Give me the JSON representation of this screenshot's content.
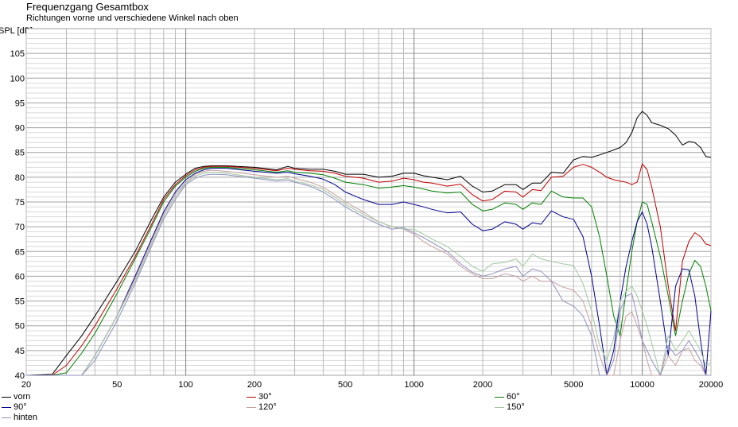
{
  "chart_data": {
    "type": "line",
    "title": "Frequenzgang Gesamtbox",
    "subtitle": "Richtungen vorne und verschiedene Winkel nach oben",
    "ylabel": "SPL [dB]",
    "xscale": "log",
    "xlim": [
      20,
      20000
    ],
    "ylim": [
      40,
      110
    ],
    "grid": true,
    "x_ticks": [
      20,
      50,
      100,
      200,
      500,
      1000,
      2000,
      5000,
      10000,
      20000
    ],
    "x_tick_labels": [
      "20",
      "50",
      "100",
      "200",
      "500",
      "1000",
      "2000",
      "5000",
      "10000",
      "20000"
    ],
    "y_ticks": [
      40,
      45,
      50,
      55,
      60,
      65,
      70,
      75,
      80,
      85,
      90,
      95,
      100,
      105
    ],
    "y_tick_labels": [
      "40",
      "45",
      "50",
      "55",
      "60",
      "65",
      "70",
      "75",
      "80",
      "85",
      "90",
      "95",
      "100",
      "105"
    ],
    "x": [
      20,
      26,
      30,
      35,
      40,
      50,
      60,
      70,
      80,
      90,
      100,
      110,
      120,
      130,
      150,
      200,
      250,
      280,
      300,
      350,
      400,
      450,
      500,
      600,
      700,
      800,
      900,
      1000,
      1100,
      1200,
      1400,
      1600,
      1800,
      2000,
      2200,
      2500,
      2800,
      3000,
      3300,
      3600,
      4000,
      4500,
      5000,
      5500,
      6000,
      6500,
      7000,
      7500,
      8000,
      8500,
      9000,
      9500,
      10000,
      10500,
      11000,
      12000,
      13000,
      14000,
      15000,
      16000,
      17000,
      18000,
      19000,
      20000
    ],
    "series": [
      {
        "name": "vorn",
        "color": "#000000",
        "values": [
          40,
          40.2,
          44,
          48,
          52,
          59,
          65,
          71,
          76,
          79,
          80.6,
          81.8,
          82.2,
          82.3,
          82.3,
          82.0,
          81.5,
          82.2,
          81.8,
          81.6,
          81.6,
          81.2,
          80.6,
          80.6,
          80.0,
          80.2,
          80.8,
          80.8,
          80.3,
          80.0,
          79.5,
          80.2,
          78.2,
          77.0,
          77.2,
          78.5,
          78.5,
          77.5,
          78.8,
          78.8,
          81.0,
          80.8,
          83.5,
          84.2,
          84.0,
          84.5,
          85.0,
          85.5,
          86.0,
          87.0,
          89.0,
          92.0,
          93.3,
          92.5,
          91.0,
          90.5,
          89.8,
          88.5,
          86.5,
          87.2,
          87.0,
          86.0,
          84.2,
          84.0
        ]
      },
      {
        "name": "30°",
        "color": "#c00000",
        "values": [
          40,
          40,
          42,
          46,
          50,
          57.5,
          64,
          70,
          75.5,
          78.5,
          80.3,
          81.5,
          82.0,
          82.2,
          82.2,
          81.8,
          81.3,
          81.8,
          81.6,
          81.3,
          81.2,
          80.8,
          80.2,
          79.8,
          79.0,
          79.2,
          79.8,
          79.5,
          79.0,
          78.8,
          78.2,
          78.6,
          76.5,
          75.2,
          75.5,
          77.2,
          77.0,
          76.0,
          77.5,
          77.3,
          80.0,
          80.2,
          82.0,
          82.6,
          82.0,
          81.0,
          80.0,
          79.5,
          79.2,
          79.0,
          78.5,
          79.0,
          82.7,
          81.5,
          78.0,
          70.0,
          58.0,
          49.0,
          63.0,
          67.0,
          68.8,
          68.0,
          66.5,
          66.2
        ]
      },
      {
        "name": "60°",
        "color": "#008000",
        "values": [
          40,
          40,
          40.5,
          44.5,
          48.5,
          56.5,
          63.5,
          69.5,
          75,
          78.2,
          80.0,
          81.2,
          81.8,
          82.0,
          82.0,
          81.5,
          81.0,
          81.3,
          81.0,
          80.8,
          80.5,
          79.8,
          79.0,
          78.5,
          77.8,
          78.0,
          78.3,
          78.0,
          77.6,
          77.2,
          76.8,
          77.0,
          74.5,
          73.2,
          73.5,
          74.8,
          74.5,
          73.5,
          74.8,
          74.5,
          77.2,
          76.0,
          75.8,
          75.8,
          74.0,
          68.0,
          60.0,
          52.0,
          48.0,
          57.0,
          65.0,
          71.0,
          75.0,
          74.5,
          71.0,
          64.0,
          56.0,
          48.0,
          55.0,
          60.5,
          63.2,
          62.0,
          58.0,
          53.0
        ]
      },
      {
        "name": "90°",
        "color": "#000090",
        "values": [
          40,
          40,
          40,
          40,
          44,
          52,
          60,
          67,
          73,
          77,
          79.5,
          80.8,
          81.5,
          81.8,
          81.8,
          81.2,
          80.8,
          81.0,
          80.7,
          80.2,
          79.6,
          78.5,
          77.0,
          75.5,
          74.5,
          74.5,
          75.0,
          74.5,
          74.0,
          73.5,
          72.8,
          73.0,
          70.5,
          69.2,
          69.5,
          71.0,
          70.5,
          69.5,
          70.8,
          70.5,
          73.2,
          72.0,
          71.5,
          68.0,
          60.0,
          50.0,
          40.0,
          45.0,
          55.0,
          62.0,
          67.0,
          71.0,
          73.0,
          70.5,
          66.0,
          55.0,
          44.0,
          58.0,
          61.5,
          61.3,
          56.0,
          47.0,
          40.0,
          53.0
        ]
      },
      {
        "name": "120°",
        "color": "#c8a0a0",
        "values": [
          40,
          40,
          40,
          40,
          44,
          52,
          59.5,
          66.5,
          72.5,
          76.5,
          79.0,
          80.5,
          81.2,
          81.4,
          81.2,
          80.5,
          80.0,
          80.2,
          79.8,
          79.0,
          78.0,
          76.5,
          75.0,
          73.0,
          71.0,
          70.0,
          69.5,
          68.5,
          67.0,
          66.0,
          64.5,
          62.0,
          60.5,
          59.5,
          59.5,
          60.5,
          60.0,
          59.0,
          60.0,
          59.0,
          59.0,
          57.8,
          57.2,
          55.0,
          50.0,
          44.0,
          40.0,
          40.0,
          47.0,
          52.0,
          52.8,
          50.0,
          47.0,
          43.0,
          40.0,
          40.0,
          44.0,
          42.0,
          45.0,
          45.5,
          43.0,
          42.0,
          40.0,
          40.0
        ]
      },
      {
        "name": "150°",
        "color": "#a0c8a0",
        "values": [
          40,
          40,
          40,
          40,
          44,
          52,
          59,
          66,
          72,
          76,
          78.8,
          80.2,
          80.8,
          81.0,
          80.8,
          80.0,
          79.5,
          79.7,
          79.2,
          78.5,
          77.5,
          76.0,
          74.5,
          72.5,
          71.0,
          70.0,
          69.5,
          69.5,
          68.5,
          67.5,
          66.0,
          64.0,
          62.0,
          61.0,
          62.5,
          62.8,
          63.5,
          62.0,
          64.5,
          63.5,
          63.0,
          62.5,
          62.2,
          58.5,
          53.0,
          46.0,
          43.0,
          47.5,
          55.0,
          57.0,
          58.0,
          56.0,
          53.0,
          50.0,
          46.5,
          40.0,
          48.0,
          45.0,
          47.0,
          49.0,
          47.0,
          45.0,
          42.0,
          42.5
        ]
      },
      {
        "name": "hinten",
        "color": "#9090c0",
        "values": [
          40,
          40,
          40,
          40,
          43,
          51,
          58.5,
          65.5,
          71.5,
          75.5,
          78.5,
          79.8,
          80.4,
          80.6,
          80.5,
          79.8,
          79.2,
          79.4,
          79.0,
          78.2,
          77.0,
          75.5,
          74.0,
          72.0,
          70.5,
          69.5,
          69.8,
          68.8,
          67.8,
          66.8,
          65.0,
          62.5,
          60.8,
          60.0,
          60.5,
          61.5,
          62.0,
          60.0,
          61.5,
          61.0,
          59.0,
          55.0,
          54.0,
          52.0,
          48.0,
          40.0,
          40.0,
          43.0,
          53.0,
          56.0,
          56.5,
          52.0,
          47.0,
          45.0,
          43.0,
          40.0,
          46.0,
          44.0,
          45.0,
          47.0,
          45.0,
          43.0,
          40.0,
          40.0
        ]
      }
    ]
  },
  "legend": [
    {
      "label": "vorn",
      "color": "#000000"
    },
    {
      "label": "30°",
      "color": "#c00000"
    },
    {
      "label": "60°",
      "color": "#008000"
    },
    {
      "label": "90°",
      "color": "#000090"
    },
    {
      "label": "120°",
      "color": "#c8a0a0"
    },
    {
      "label": "150°",
      "color": "#a0c8a0"
    },
    {
      "label": "hinten",
      "color": "#9090c0"
    }
  ]
}
